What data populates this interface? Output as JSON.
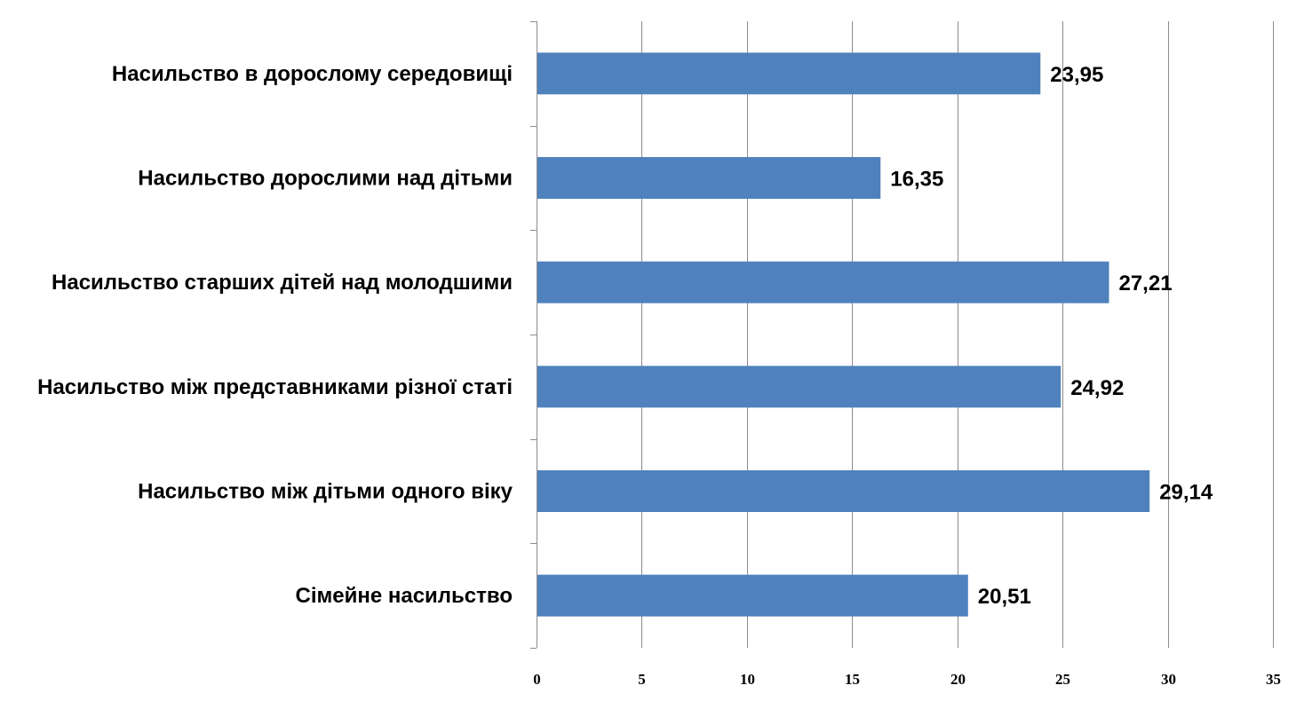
{
  "chart_data": {
    "type": "bar",
    "orientation": "horizontal",
    "title": "",
    "xlabel": "",
    "ylabel": "",
    "categories": [
      "Насильство в дорослому середовищі",
      "Насильство дорослими над дітьми",
      "Насильство старших дітей над молодшими",
      "Насильство між представниками різної статі",
      "Насильство між дітьми одного віку",
      "Сімейне насильство"
    ],
    "values": [
      23.95,
      16.35,
      27.21,
      24.92,
      29.14,
      20.51
    ],
    "value_labels": [
      "23,95",
      "16,35",
      "27,21",
      "24,92",
      "29,14",
      "20,51"
    ],
    "xlim": [
      0,
      35
    ],
    "xticks": [
      "0",
      "5",
      "10",
      "15",
      "20",
      "25",
      "30",
      "35"
    ],
    "grid": "vertical",
    "legend": "none",
    "bar_color": "#4f81bd",
    "grid_color": "#8c8c8c"
  }
}
